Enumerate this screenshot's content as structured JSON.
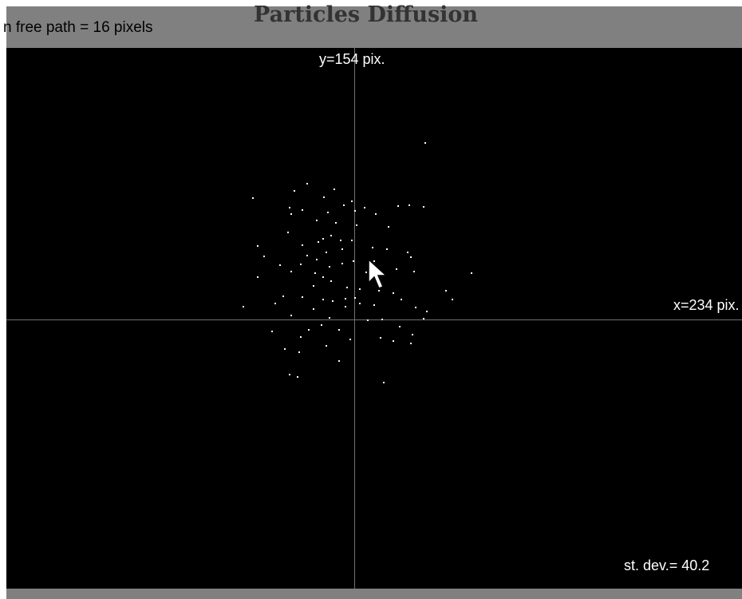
{
  "window": {
    "title": "Particles Diffusion",
    "mean_free_path": "n free path = 16 pixels"
  },
  "simulation": {
    "y_label": "y=154 pix.",
    "x_label": "x=234 pix.",
    "st_dev_label": "st. dev.= 40.2"
  },
  "colors": {
    "background": "#000000",
    "axis": "#707070",
    "particle": "#ffffff",
    "bar": "#808080"
  },
  "icons": {
    "cursor": "mouse-pointer-icon"
  }
}
